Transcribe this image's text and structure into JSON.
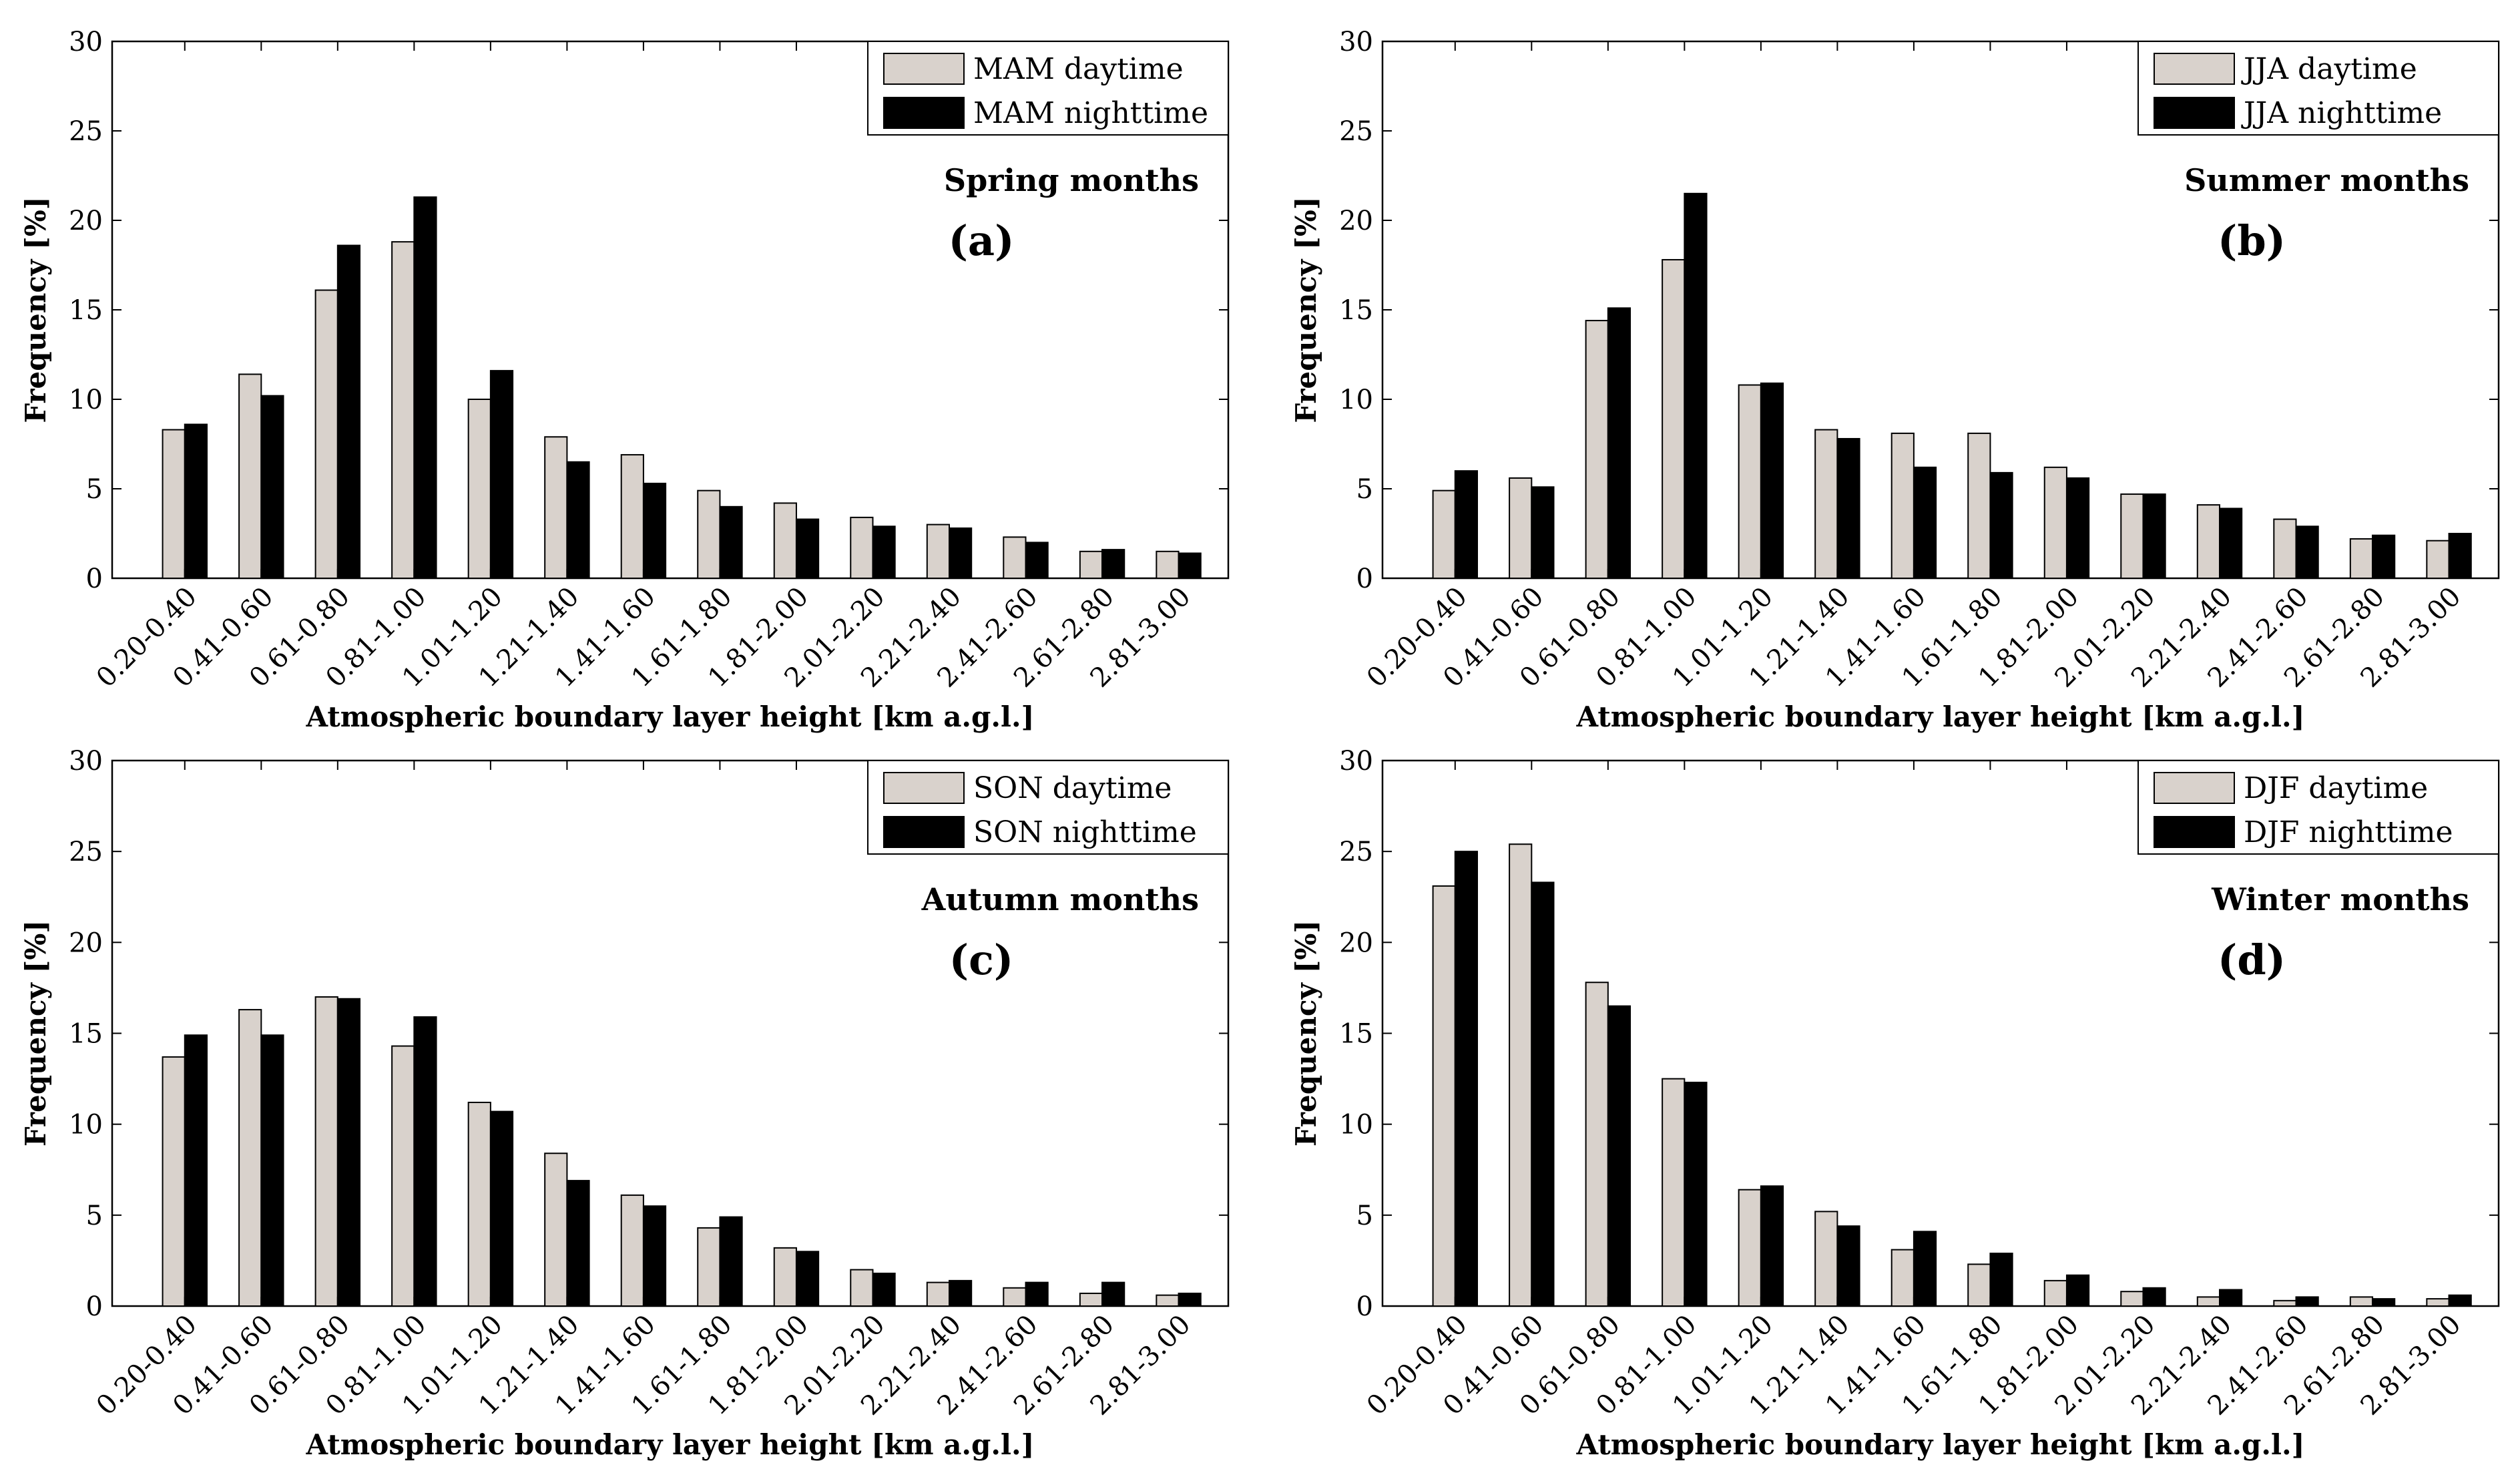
{
  "colors": {
    "daytime": "#d9d2cc",
    "nighttime": "#000000",
    "axis": "#000000"
  },
  "chart_data": [
    {
      "type": "bar",
      "panel": "(a)",
      "season_label": "Spring months",
      "legend": [
        "MAM daytime",
        "MAM nighttime"
      ],
      "legend_position": "top-right",
      "xlabel": "Atmospheric boundary layer height [km a.g.l.]",
      "ylabel": "Frequency [%]",
      "ylim": [
        0,
        30
      ],
      "yticks": [
        "0",
        "5",
        "10",
        "15",
        "20",
        "25",
        "30"
      ],
      "categories": [
        "0.20-0.40",
        "0.41-0.60",
        "0.61-0.80",
        "0.81-1.00",
        "1.01-1.20",
        "1.21-1.40",
        "1.41-1.60",
        "1.61-1.80",
        "1.81-2.00",
        "2.01-2.20",
        "2.21-2.40",
        "2.41-2.60",
        "2.61-2.80",
        "2.81-3.00"
      ],
      "series": [
        {
          "name": "MAM daytime",
          "values": [
            8.3,
            11.4,
            16.1,
            18.8,
            10.0,
            7.9,
            6.9,
            4.9,
            4.2,
            3.4,
            3.0,
            2.3,
            1.5,
            1.5
          ]
        },
        {
          "name": "MAM nighttime",
          "values": [
            8.6,
            10.2,
            18.6,
            21.3,
            11.6,
            6.5,
            5.3,
            4.0,
            3.3,
            2.9,
            2.8,
            2.0,
            1.6,
            1.4
          ]
        }
      ]
    },
    {
      "type": "bar",
      "panel": "(b)",
      "season_label": "Summer months",
      "legend": [
        "JJA daytime",
        "JJA nighttime"
      ],
      "legend_position": "top-right",
      "xlabel": "Atmospheric boundary layer height [km a.g.l.]",
      "ylabel": "Frequency [%]",
      "ylim": [
        0,
        30
      ],
      "yticks": [
        "0",
        "5",
        "10",
        "15",
        "20",
        "25",
        "30"
      ],
      "categories": [
        "0.20-0.40",
        "0.41-0.60",
        "0.61-0.80",
        "0.81-1.00",
        "1.01-1.20",
        "1.21-1.40",
        "1.41-1.60",
        "1.61-1.80",
        "1.81-2.00",
        "2.01-2.20",
        "2.21-2.40",
        "2.41-2.60",
        "2.61-2.80",
        "2.81-3.00"
      ],
      "series": [
        {
          "name": "JJA daytime",
          "values": [
            4.9,
            5.6,
            14.4,
            17.8,
            10.8,
            8.3,
            8.1,
            8.1,
            6.2,
            4.7,
            4.1,
            3.3,
            2.2,
            2.1
          ]
        },
        {
          "name": "JJA nighttime",
          "values": [
            6.0,
            5.1,
            15.1,
            21.5,
            10.9,
            7.8,
            6.2,
            5.9,
            5.6,
            4.7,
            3.9,
            2.9,
            2.4,
            2.5
          ]
        }
      ]
    },
    {
      "type": "bar",
      "panel": "(c)",
      "season_label": "Autumn months",
      "legend": [
        "SON daytime",
        "SON nighttime"
      ],
      "legend_position": "top-right",
      "xlabel": "Atmospheric boundary layer height [km a.g.l.]",
      "ylabel": "Frequency [%]",
      "ylim": [
        0,
        30
      ],
      "yticks": [
        "0",
        "5",
        "10",
        "15",
        "20",
        "25",
        "30"
      ],
      "categories": [
        "0.20-0.40",
        "0.41-0.60",
        "0.61-0.80",
        "0.81-1.00",
        "1.01-1.20",
        "1.21-1.40",
        "1.41-1.60",
        "1.61-1.80",
        "1.81-2.00",
        "2.01-2.20",
        "2.21-2.40",
        "2.41-2.60",
        "2.61-2.80",
        "2.81-3.00"
      ],
      "series": [
        {
          "name": "SON daytime",
          "values": [
            13.7,
            16.3,
            17.0,
            14.3,
            11.2,
            8.4,
            6.1,
            4.3,
            3.2,
            2.0,
            1.3,
            1.0,
            0.7,
            0.6
          ]
        },
        {
          "name": "SON nighttime",
          "values": [
            14.9,
            14.9,
            16.9,
            15.9,
            10.7,
            6.9,
            5.5,
            4.9,
            3.0,
            1.8,
            1.4,
            1.3,
            1.3,
            0.7
          ]
        }
      ]
    },
    {
      "type": "bar",
      "panel": "(d)",
      "season_label": "Winter months",
      "legend": [
        "DJF daytime",
        "DJF nighttime"
      ],
      "legend_position": "top-right",
      "xlabel": "Atmospheric boundary layer height [km a.g.l.]",
      "ylabel": "Frequency [%]",
      "ylim": [
        0,
        30
      ],
      "yticks": [
        "0",
        "5",
        "10",
        "15",
        "20",
        "25",
        "30"
      ],
      "categories": [
        "0.20-0.40",
        "0.41-0.60",
        "0.61-0.80",
        "0.81-1.00",
        "1.01-1.20",
        "1.21-1.40",
        "1.41-1.60",
        "1.61-1.80",
        "1.81-2.00",
        "2.01-2.20",
        "2.21-2.40",
        "2.41-2.60",
        "2.61-2.80",
        "2.81-3.00"
      ],
      "series": [
        {
          "name": "DJF daytime",
          "values": [
            23.1,
            25.4,
            17.8,
            12.5,
            6.4,
            5.2,
            3.1,
            2.3,
            1.4,
            0.8,
            0.5,
            0.3,
            0.5,
            0.4
          ]
        },
        {
          "name": "DJF nighttime",
          "values": [
            25.0,
            23.3,
            16.5,
            12.3,
            6.6,
            4.4,
            4.1,
            2.9,
            1.7,
            1.0,
            0.9,
            0.5,
            0.4,
            0.6
          ]
        }
      ]
    }
  ]
}
